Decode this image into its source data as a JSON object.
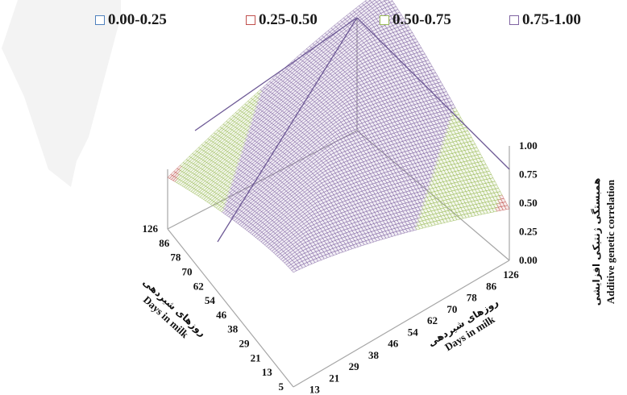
{
  "chart_data": {
    "type": "surface",
    "legend": {
      "position": "top",
      "entries": [
        {
          "label": "0.00-0.25",
          "color": "#4f81bd"
        },
        {
          "label": "0.25-0.50",
          "color": "#c0504d"
        },
        {
          "label": "0.50-0.75",
          "color": "#9bbb59"
        },
        {
          "label": "0.75-1.00",
          "color": "#8064a2"
        }
      ]
    },
    "x_axis": {
      "title": "Days in milk",
      "title_fa": "روزهای شیردهی",
      "ticks": [
        "5",
        "13",
        "21",
        "29",
        "38",
        "46",
        "54",
        "62",
        "70",
        "78",
        "86",
        "126"
      ]
    },
    "y_axis": {
      "title": "Days in milk",
      "title_fa": "روزهای شیردهی",
      "ticks": [
        "5",
        "13",
        "21",
        "29",
        "38",
        "46",
        "54",
        "62",
        "70",
        "78",
        "86",
        "126"
      ]
    },
    "z_axis": {
      "title": "Additive genetic correlation",
      "title_fa": "همبستگی ژنتیکی افزایشی",
      "ticks": [
        "0.00",
        "0.25",
        "0.50",
        "0.75",
        "1.00"
      ],
      "range": [
        0,
        1
      ]
    },
    "surface_values": {
      "corner_5_5": 1.0,
      "corner_126_126": 1.0,
      "corner_5_126": 0.45,
      "corner_126_5": 0.45,
      "diagonal": 1.0
    },
    "colors": {
      "band_high": "#8064a2",
      "band_mid": "#9bbb59",
      "band_low": "#c0504d",
      "axis": "#999999",
      "watermark": "#e6e6e6"
    }
  }
}
